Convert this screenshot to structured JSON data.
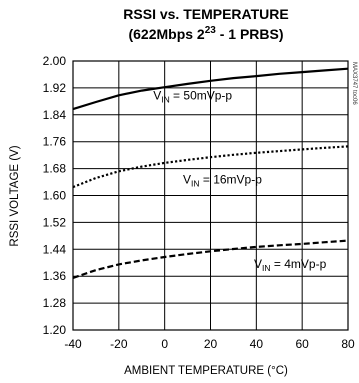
{
  "chart_data": {
    "type": "line",
    "title": "RSSI vs. TEMPERATURE",
    "subtitle": {
      "prefix": "(622Mbps 2",
      "superscript": "23",
      "suffix": " - 1 PRBS)"
    },
    "xlabel": "AMBIENT TEMPERATURE (°C)",
    "ylabel": "RSSI VOLTAGE (V)",
    "xlim": [
      -40,
      80
    ],
    "ylim": [
      1.2,
      2.0
    ],
    "xticks": [
      -40,
      -20,
      0,
      20,
      40,
      60,
      80
    ],
    "yticks": [
      "1.20",
      "1.28",
      "1.36",
      "1.44",
      "1.52",
      "1.60",
      "1.68",
      "1.76",
      "1.84",
      "1.92",
      "2.00"
    ],
    "grid": true,
    "watermark": "MAX3747 toc06",
    "series": [
      {
        "label_main": "V",
        "label_sub": "IN",
        "label_rest": " = 50mVp-p",
        "label_at": [
          -5,
          1.885
        ],
        "style": "solid",
        "x": [
          -40,
          -30,
          -20,
          -10,
          0,
          10,
          20,
          30,
          40,
          50,
          60,
          70,
          80
        ],
        "y": [
          1.857,
          1.878,
          1.898,
          1.912,
          1.922,
          1.932,
          1.941,
          1.949,
          1.955,
          1.962,
          1.967,
          1.972,
          1.977
        ]
      },
      {
        "label_main": "V",
        "label_sub": "IN",
        "label_rest": " = 16mVp-p",
        "label_at": [
          8,
          1.635
        ],
        "style": "dotted",
        "x": [
          -40,
          -30,
          -20,
          -10,
          0,
          10,
          20,
          30,
          40,
          50,
          60,
          70,
          80
        ],
        "y": [
          1.625,
          1.652,
          1.672,
          1.686,
          1.697,
          1.706,
          1.714,
          1.721,
          1.727,
          1.732,
          1.737,
          1.742,
          1.746
        ]
      },
      {
        "label_main": "V",
        "label_sub": "IN",
        "label_rest": " = 4mVp-p",
        "label_at": [
          39,
          1.385
        ],
        "style": "dashed",
        "x": [
          -40,
          -30,
          -20,
          -10,
          0,
          10,
          20,
          30,
          40,
          50,
          60,
          70,
          80
        ],
        "y": [
          1.355,
          1.378,
          1.395,
          1.407,
          1.417,
          1.426,
          1.434,
          1.441,
          1.447,
          1.452,
          1.456,
          1.461,
          1.466
        ]
      }
    ]
  }
}
